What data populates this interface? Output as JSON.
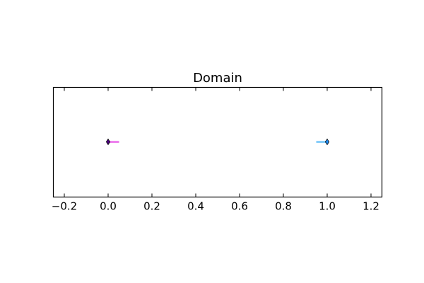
{
  "chart_data": {
    "type": "scatter",
    "title": "Domain",
    "xlabel": "",
    "ylabel": "",
    "xlim": [
      -0.25,
      1.25
    ],
    "x_ticks": [
      -0.2,
      0.0,
      0.2,
      0.4,
      0.6,
      0.8,
      1.0,
      1.2
    ],
    "x_tick_labels": [
      "−0.2",
      "0.0",
      "0.2",
      "0.4",
      "0.6",
      "0.8",
      "1.0",
      "1.2"
    ],
    "grid": false,
    "y_axis_visible": false,
    "series": [
      {
        "x": [
          0.0
        ],
        "marker": "diamond",
        "marker_color": "#4b0082",
        "segment_to": 0.05,
        "segment_color": "#ee82ee"
      },
      {
        "x": [
          1.0
        ],
        "marker": "diamond",
        "marker_color": "#1e90ff",
        "segment_to": 0.95,
        "segment_color": "#87cefa"
      }
    ]
  }
}
